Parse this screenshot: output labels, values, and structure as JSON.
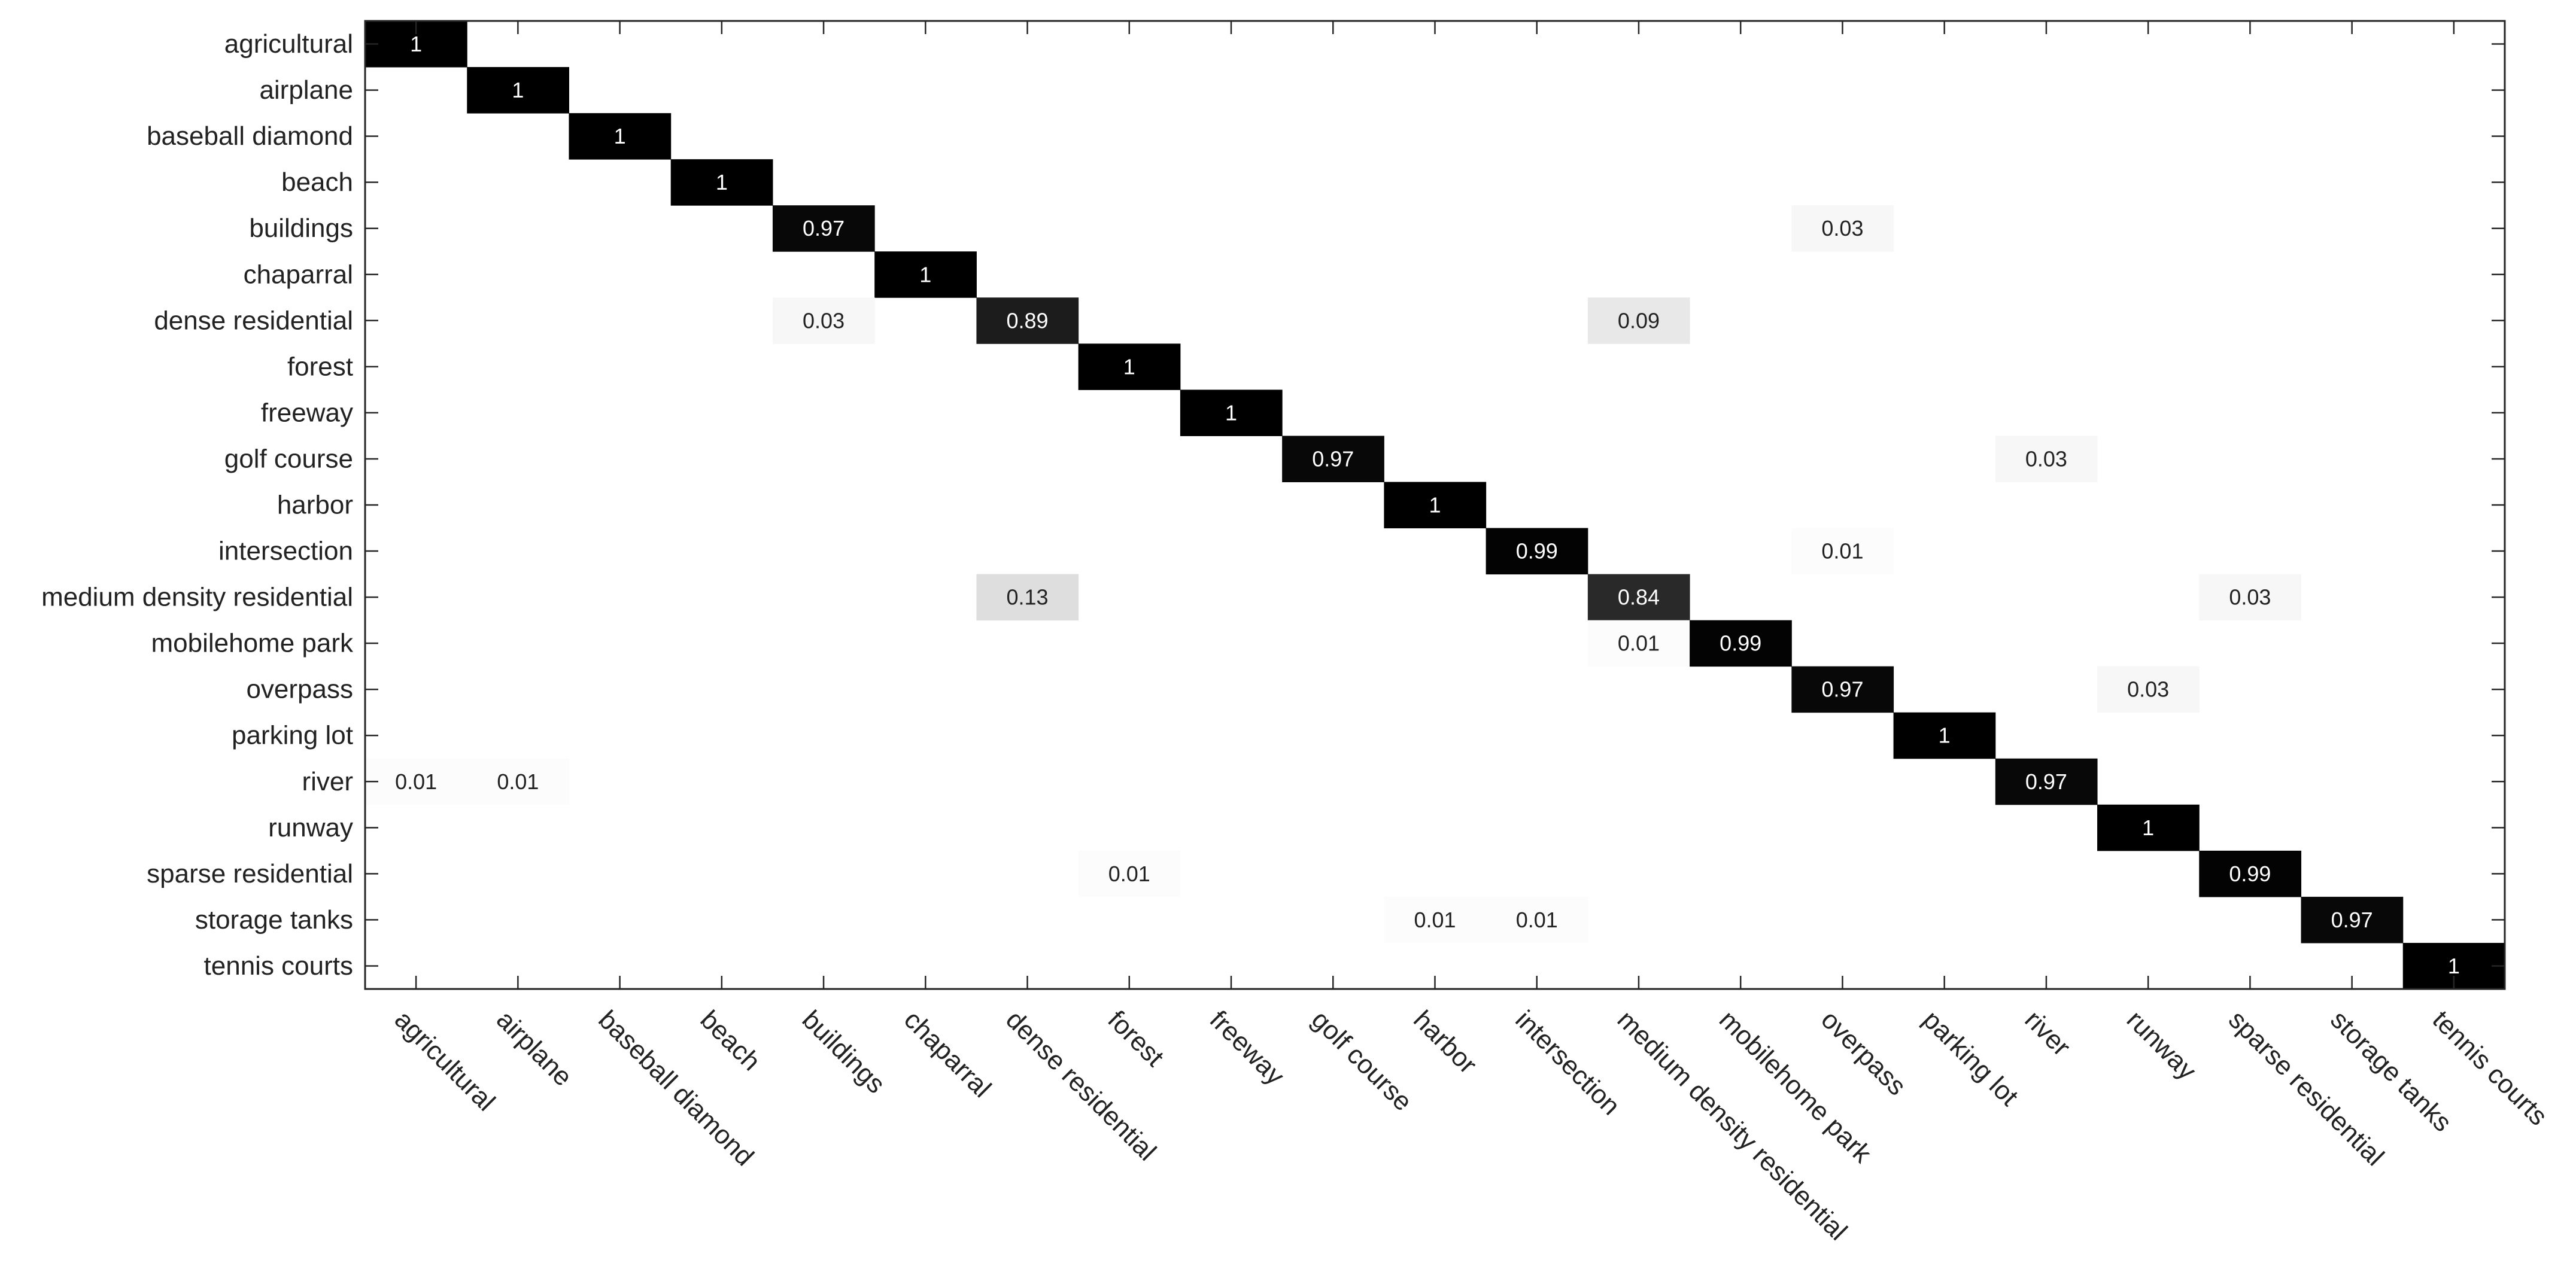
{
  "chart_data": {
    "type": "heatmap",
    "title": "",
    "xlabel": "",
    "ylabel": "",
    "grid": false,
    "colormap": "grayscale (white = 0, black = 1)",
    "rows": [
      "agricultural",
      "airplane",
      "baseball diamond",
      "beach",
      "buildings",
      "chaparral",
      "dense residential",
      "forest",
      "freeway",
      "golf course",
      "harbor",
      "intersection",
      "medium density residential",
      "mobilehome park",
      "overpass",
      "parking lot",
      "river",
      "runway",
      "sparse residential",
      "storage tanks",
      "tennis courts"
    ],
    "columns": [
      "agricultural",
      "airplane",
      "baseball diamond",
      "beach",
      "buildings",
      "chaparral",
      "dense residential",
      "forest",
      "freeway",
      "golf course",
      "harbor",
      "intersection",
      "medium density residential",
      "mobilehome park",
      "overpass",
      "parking lot",
      "river",
      "runway",
      "sparse residential",
      "storage tanks",
      "tennis courts"
    ],
    "cells": [
      {
        "row": 0,
        "col": 0,
        "value": 1,
        "label": "1"
      },
      {
        "row": 1,
        "col": 1,
        "value": 1,
        "label": "1"
      },
      {
        "row": 2,
        "col": 2,
        "value": 1,
        "label": "1"
      },
      {
        "row": 3,
        "col": 3,
        "value": 1,
        "label": "1"
      },
      {
        "row": 4,
        "col": 4,
        "value": 0.97,
        "label": "0.97"
      },
      {
        "row": 4,
        "col": 14,
        "value": 0.03,
        "label": "0.03"
      },
      {
        "row": 5,
        "col": 5,
        "value": 1,
        "label": "1"
      },
      {
        "row": 6,
        "col": 4,
        "value": 0.03,
        "label": "0.03"
      },
      {
        "row": 6,
        "col": 6,
        "value": 0.89,
        "label": "0.89"
      },
      {
        "row": 6,
        "col": 12,
        "value": 0.09,
        "label": "0.09"
      },
      {
        "row": 7,
        "col": 7,
        "value": 1,
        "label": "1"
      },
      {
        "row": 8,
        "col": 8,
        "value": 1,
        "label": "1"
      },
      {
        "row": 9,
        "col": 9,
        "value": 0.97,
        "label": "0.97"
      },
      {
        "row": 9,
        "col": 16,
        "value": 0.03,
        "label": "0.03"
      },
      {
        "row": 10,
        "col": 10,
        "value": 1,
        "label": "1"
      },
      {
        "row": 11,
        "col": 11,
        "value": 0.99,
        "label": "0.99"
      },
      {
        "row": 11,
        "col": 14,
        "value": 0.01,
        "label": "0.01"
      },
      {
        "row": 12,
        "col": 6,
        "value": 0.13,
        "label": "0.13"
      },
      {
        "row": 12,
        "col": 12,
        "value": 0.84,
        "label": "0.84"
      },
      {
        "row": 12,
        "col": 18,
        "value": 0.03,
        "label": "0.03"
      },
      {
        "row": 13,
        "col": 12,
        "value": 0.01,
        "label": "0.01"
      },
      {
        "row": 13,
        "col": 13,
        "value": 0.99,
        "label": "0.99"
      },
      {
        "row": 14,
        "col": 14,
        "value": 0.97,
        "label": "0.97"
      },
      {
        "row": 14,
        "col": 17,
        "value": 0.03,
        "label": "0.03"
      },
      {
        "row": 15,
        "col": 15,
        "value": 1,
        "label": "1"
      },
      {
        "row": 16,
        "col": 0,
        "value": 0.01,
        "label": "0.01"
      },
      {
        "row": 16,
        "col": 1,
        "value": 0.01,
        "label": "0.01"
      },
      {
        "row": 16,
        "col": 16,
        "value": 0.97,
        "label": "0.97"
      },
      {
        "row": 17,
        "col": 17,
        "value": 1,
        "label": "1"
      },
      {
        "row": 18,
        "col": 7,
        "value": 0.01,
        "label": "0.01"
      },
      {
        "row": 18,
        "col": 18,
        "value": 0.99,
        "label": "0.99"
      },
      {
        "row": 19,
        "col": 10,
        "value": 0.01,
        "label": "0.01"
      },
      {
        "row": 19,
        "col": 11,
        "value": 0.01,
        "label": "0.01"
      },
      {
        "row": 19,
        "col": 19,
        "value": 0.97,
        "label": "0.97"
      },
      {
        "row": 20,
        "col": 20,
        "value": 1,
        "label": "1"
      }
    ]
  }
}
